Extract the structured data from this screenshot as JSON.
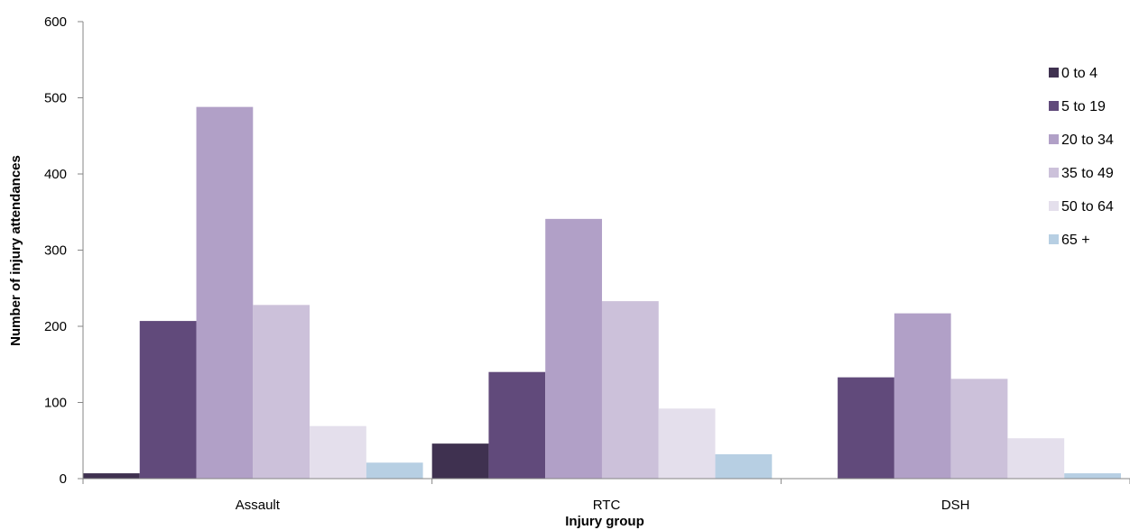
{
  "chart_data": {
    "type": "bar",
    "title": "",
    "xlabel": "Injury group",
    "ylabel": "Number of injury attendances",
    "categories": [
      "Assault",
      "RTC",
      "DSH"
    ],
    "ylim": [
      0,
      600
    ],
    "yticks": [
      0,
      100,
      200,
      300,
      400,
      500,
      600
    ],
    "grid": false,
    "legend_position": "right",
    "series": [
      {
        "name": "0 to 4",
        "color": "#3f3150",
        "values": [
          7,
          46,
          0
        ]
      },
      {
        "name": "5 to 19",
        "color": "#614a7b",
        "values": [
          207,
          140,
          133
        ]
      },
      {
        "name": "20 to 34",
        "color": "#b1a0c7",
        "values": [
          488,
          341,
          217
        ]
      },
      {
        "name": "35 to 49",
        "color": "#ccc1da",
        "values": [
          228,
          233,
          131
        ]
      },
      {
        "name": "50 to 64",
        "color": "#e4dfec",
        "values": [
          69,
          92,
          53
        ]
      },
      {
        "name": "65 +",
        "color": "#b7cfe3",
        "values": [
          21,
          32,
          7
        ]
      }
    ]
  }
}
